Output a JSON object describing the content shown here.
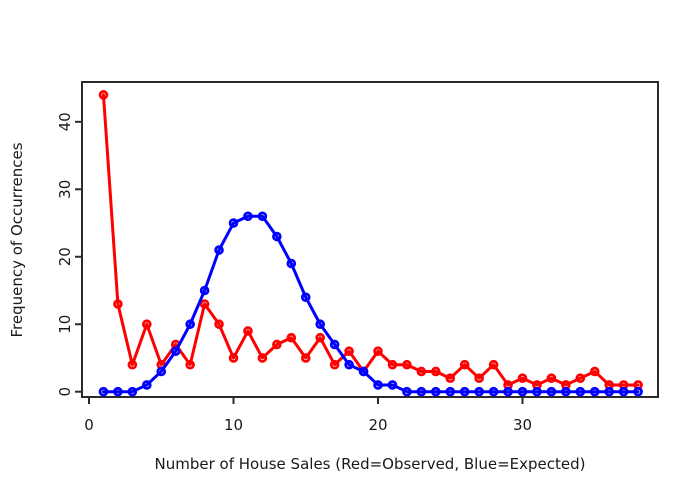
{
  "chart_data": {
    "type": "line",
    "title": "",
    "xlabel": "Number of House Sales (Red=Observed, Blue=Expected)",
    "ylabel": "Frequency of Occurrences",
    "x": [
      1,
      2,
      3,
      4,
      5,
      6,
      7,
      8,
      9,
      10,
      11,
      12,
      13,
      14,
      15,
      16,
      17,
      18,
      19,
      20,
      21,
      22,
      23,
      24,
      25,
      26,
      27,
      28,
      29,
      30,
      31,
      32,
      33,
      34,
      35,
      36,
      37,
      38
    ],
    "series": [
      {
        "name": "Observed",
        "color": "#ff0000",
        "values": [
          44,
          13,
          4,
          10,
          4,
          7,
          4,
          13,
          10,
          5,
          9,
          5,
          7,
          8,
          5,
          8,
          4,
          6,
          3,
          6,
          4,
          4,
          3,
          3,
          2,
          4,
          2,
          4,
          1,
          2,
          1,
          2,
          1,
          2,
          3,
          1,
          1,
          1
        ]
      },
      {
        "name": "Expected",
        "color": "#0000ff",
        "values": [
          0,
          0,
          0,
          1,
          3,
          6,
          10,
          15,
          21,
          25,
          26,
          26,
          23,
          19,
          14,
          10,
          7,
          4,
          3,
          1,
          1,
          0,
          0,
          0,
          0,
          0,
          0,
          0,
          0,
          0,
          0,
          0,
          0,
          0,
          0,
          0,
          0,
          0
        ]
      }
    ],
    "xticks": [
      0,
      10,
      20,
      30
    ],
    "yticks": [
      0,
      10,
      20,
      30,
      40
    ],
    "xlim": [
      -0.5,
      39.5
    ],
    "ylim": [
      -0.8,
      45.9
    ],
    "grid": false,
    "legend_position": "none (series identified in x-axis label)",
    "marker": "open-circle",
    "line_width": 3,
    "axis_color": "#2b2b2b",
    "background_color": "#ffffff"
  }
}
